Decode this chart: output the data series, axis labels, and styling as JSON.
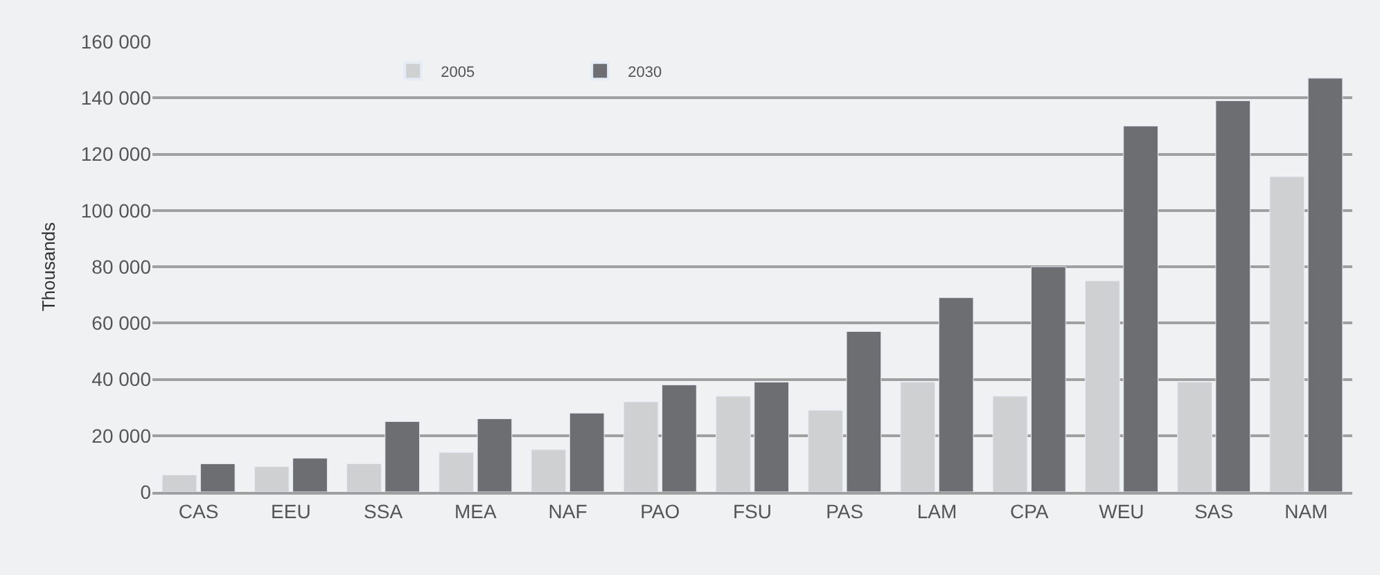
{
  "chart_data": {
    "type": "bar",
    "ylabel": "Thousands",
    "categories": [
      "CAS",
      "EEU",
      "SSA",
      "MEA",
      "NAF",
      "PAO",
      "FSU",
      "PAS",
      "LAM",
      "CPA",
      "WEU",
      "SAS",
      "NAM"
    ],
    "series": [
      {
        "name": "2005",
        "color": "#cfd0d2",
        "values": [
          6000,
          9000,
          10000,
          14000,
          15000,
          32000,
          34000,
          29000,
          39000,
          34000,
          75000,
          39000,
          112000
        ]
      },
      {
        "name": "2030",
        "color": "#6d6e72",
        "values": [
          10000,
          12000,
          25000,
          26000,
          28000,
          38000,
          39000,
          57000,
          69000,
          80000,
          130000,
          139000,
          147000
        ]
      }
    ],
    "ylim": [
      0,
      160000
    ],
    "yticks": [
      {
        "value": 0,
        "label": "0"
      },
      {
        "value": 20000,
        "label": "20 000"
      },
      {
        "value": 40000,
        "label": "40 000"
      },
      {
        "value": 60000,
        "label": "60 000"
      },
      {
        "value": 80000,
        "label": "80 000"
      },
      {
        "value": 100000,
        "label": "100 000"
      },
      {
        "value": 120000,
        "label": "120 000"
      },
      {
        "value": 140000,
        "label": "140 000"
      },
      {
        "value": 160000,
        "label": "160 000"
      }
    ],
    "grid": "y",
    "legend": "top"
  }
}
